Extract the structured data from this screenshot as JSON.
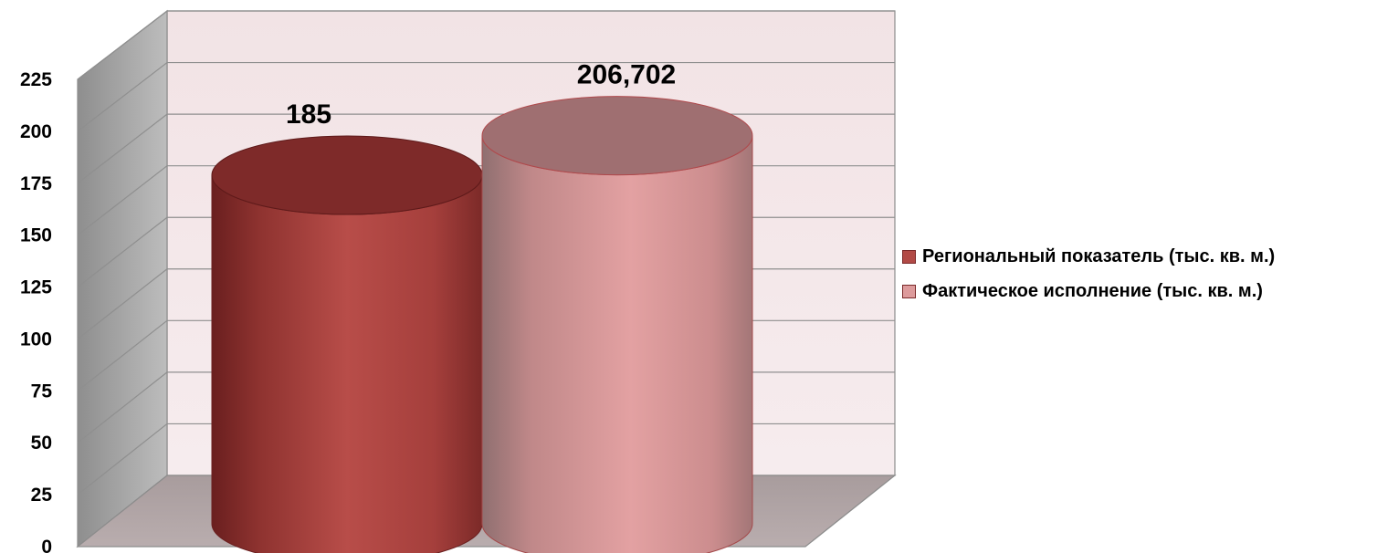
{
  "chart_data": {
    "type": "bar",
    "style": "3d-cylinder",
    "categories": [
      ""
    ],
    "series": [
      {
        "name": "Региональный показатель (тыс. кв. м.)",
        "values": [
          185
        ],
        "data_label": "185",
        "color": "#b24a46"
      },
      {
        "name": "Фактическое исполнение (тыс. кв. м.)",
        "values": [
          206.702
        ],
        "data_label": "206,702",
        "color": "#dd9b9c"
      }
    ],
    "yticks": [
      "0",
      "25",
      "50",
      "75",
      "100",
      "125",
      "150",
      "175",
      "200",
      "225"
    ],
    "ylim": [
      0,
      225
    ],
    "grid": true,
    "legend": "right",
    "title": "",
    "xlabel": "",
    "ylabel": ""
  }
}
